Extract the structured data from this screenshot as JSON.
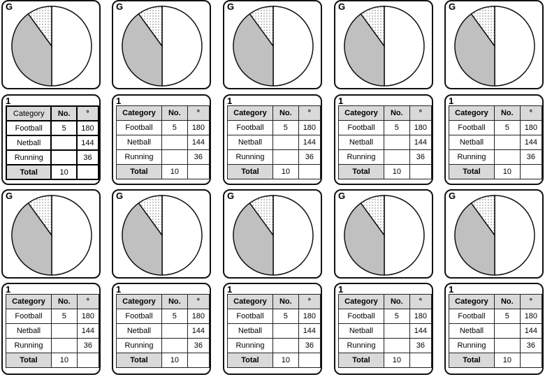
{
  "pie_label": "G",
  "table_label": "1",
  "table": {
    "headers": [
      "Category",
      "No.",
      "°"
    ],
    "rows": [
      [
        "Football",
        "5",
        "180"
      ],
      [
        "Netball",
        "",
        "144"
      ],
      [
        "Running",
        "",
        "36"
      ]
    ],
    "total_label": "Total",
    "total_value": "10"
  },
  "pie_slices": [
    {
      "category": "Football",
      "degrees": 180,
      "fill": "#ffffff"
    },
    {
      "category": "Netball",
      "degrees": 144,
      "fill": "#c0c0c0"
    },
    {
      "category": "Running",
      "degrees": 36,
      "fill": "dotted"
    }
  ],
  "colors": {
    "netball": "#c0c0c0",
    "header": "#d9d9d9",
    "border": "#111111"
  }
}
